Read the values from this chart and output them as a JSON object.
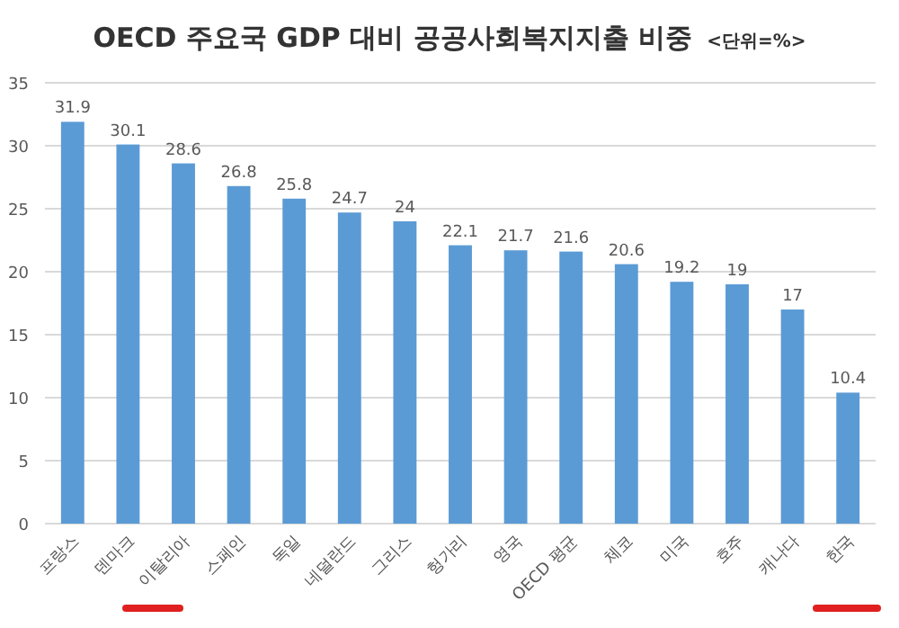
{
  "chart_data": {
    "type": "bar",
    "title": "OECD 주요국 GDP 대비 공공사회복지지출 비중",
    "subtitle": "<단위=%>",
    "categories": [
      "프랑스",
      "덴마크",
      "이탈리아",
      "스페인",
      "독일",
      "네덜란드",
      "그리스",
      "헝가리",
      "영국",
      "OECD 평균",
      "체코",
      "미국",
      "호주",
      "캐나다",
      "한국"
    ],
    "values": [
      31.9,
      30.1,
      28.6,
      26.8,
      25.8,
      24.7,
      24,
      22.1,
      21.7,
      21.6,
      20.6,
      19.2,
      19,
      17,
      10.4
    ],
    "color": "#5b9bd5",
    "ylim": [
      0,
      35
    ],
    "yticks": [
      0,
      5,
      10,
      15,
      20,
      25,
      30,
      35
    ],
    "grid": "y",
    "data_labels": true
  }
}
